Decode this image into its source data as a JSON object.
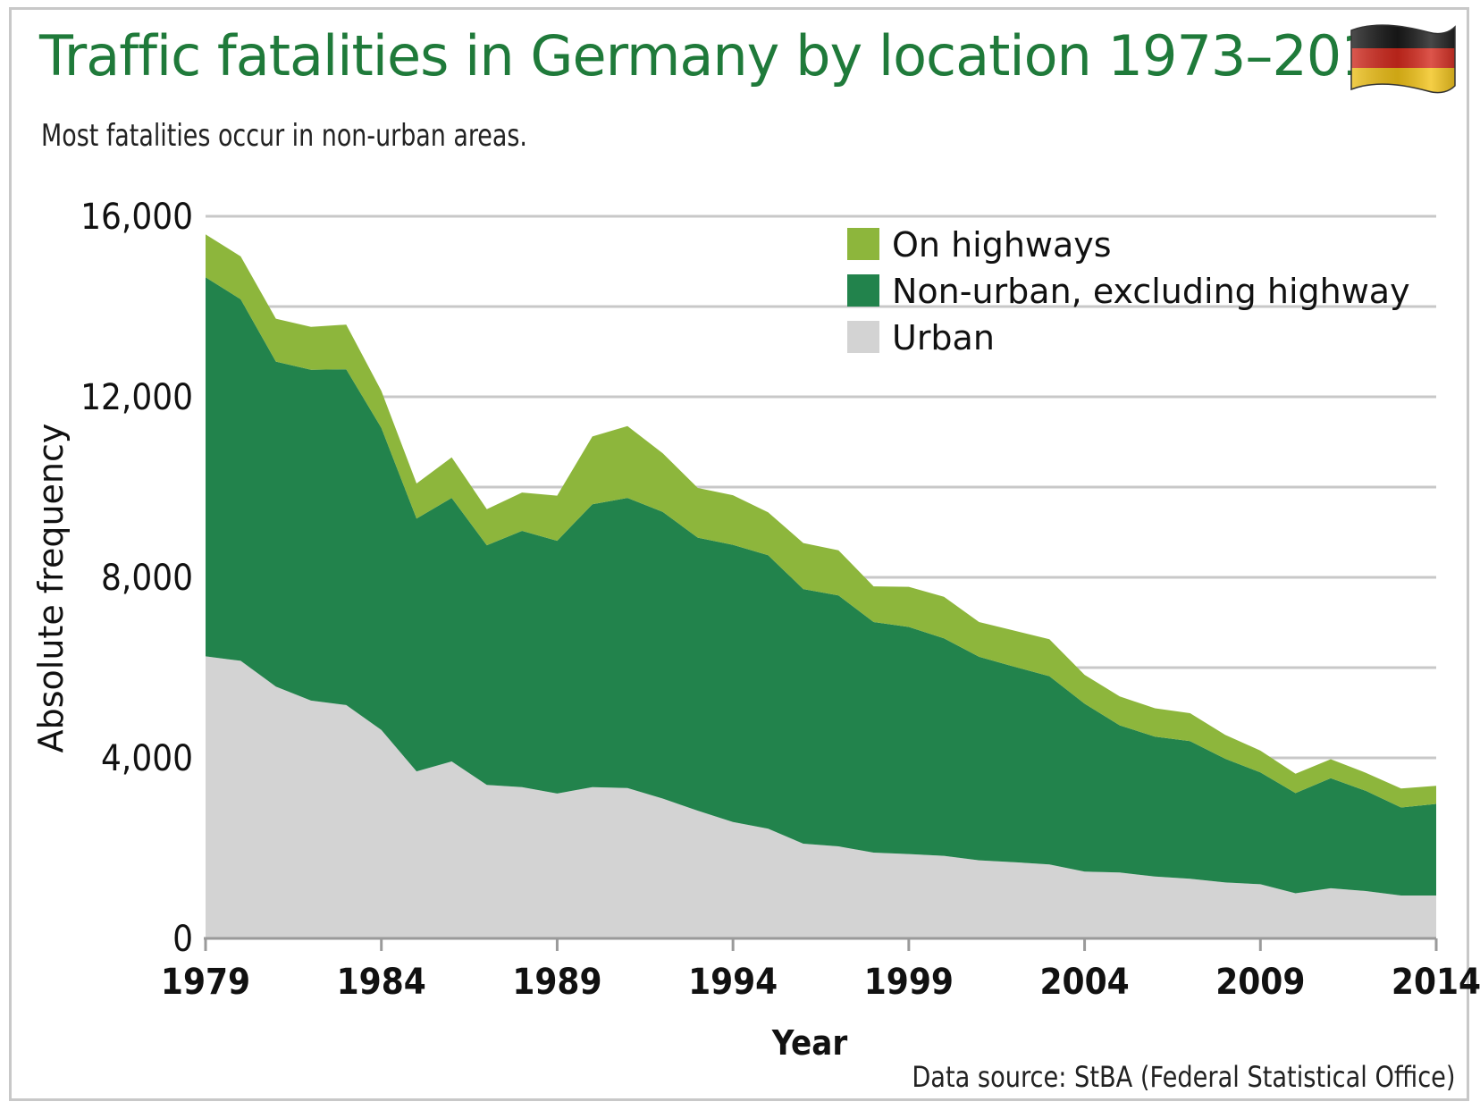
{
  "title": "Traffic fatalities in Germany by location 1973–2014",
  "subtitle": "Most fatalities occur in non-urban areas.",
  "source": "Data source: StBA (Federal Statistical Office)",
  "flag_icon": "germany-flag-icon",
  "colors": {
    "highways": "#8db63c",
    "non_urban": "#22834c",
    "urban": "#d3d3d3",
    "title": "#1f7a3a",
    "grid": "#c8c8c8"
  },
  "chart_data": {
    "type": "area",
    "stacked": true,
    "title": "Traffic fatalities in Germany by location 1973–2014",
    "subtitle": "Most fatalities occur in non-urban areas.",
    "xlabel": "Year",
    "ylabel": "Absolute frequency",
    "ylim": [
      0,
      16000
    ],
    "xlim": [
      1979,
      2014
    ],
    "x_ticks": [
      "1979",
      "1984",
      "1989",
      "1994",
      "1999",
      "2004",
      "2009",
      "2014"
    ],
    "y_ticks": [
      "0",
      "4,000",
      "8,000",
      "12,000",
      "16,000"
    ],
    "grid": true,
    "legend_position": "top-right",
    "x": [
      1979,
      1980,
      1981,
      1982,
      1983,
      1984,
      1985,
      1986,
      1987,
      1988,
      1989,
      1990,
      1991,
      1992,
      1993,
      1994,
      1995,
      1996,
      1997,
      1998,
      1999,
      2000,
      2001,
      2002,
      2003,
      2004,
      2005,
      2006,
      2007,
      2008,
      2009,
      2010,
      2011,
      2012,
      2013,
      2014
    ],
    "series": [
      {
        "name": "Urban",
        "values": [
          6250,
          6150,
          5580,
          5270,
          5170,
          4620,
          3700,
          3920,
          3400,
          3350,
          3210,
          3350,
          3330,
          3100,
          2830,
          2580,
          2430,
          2100,
          2040,
          1900,
          1870,
          1830,
          1730,
          1690,
          1640,
          1480,
          1460,
          1370,
          1320,
          1240,
          1200,
          1000,
          1110,
          1050,
          950,
          950
        ]
      },
      {
        "name": "Non-urban, excluding highway",
        "values": [
          8400,
          8010,
          7200,
          7330,
          7440,
          6690,
          5600,
          5840,
          5310,
          5680,
          5600,
          6270,
          6430,
          6350,
          6050,
          6140,
          6060,
          5640,
          5560,
          5110,
          5030,
          4820,
          4510,
          4330,
          4170,
          3720,
          3260,
          3100,
          3050,
          2740,
          2480,
          2220,
          2440,
          2220,
          1950,
          2030
        ]
      },
      {
        "name": "On highways",
        "values": [
          950,
          950,
          950,
          950,
          990,
          820,
          780,
          900,
          800,
          850,
          1000,
          1500,
          1590,
          1300,
          1100,
          1100,
          950,
          1020,
          1000,
          790,
          890,
          920,
          770,
          800,
          820,
          640,
          640,
          630,
          620,
          530,
          480,
          430,
          420,
          400,
          420,
          400
        ]
      }
    ]
  }
}
